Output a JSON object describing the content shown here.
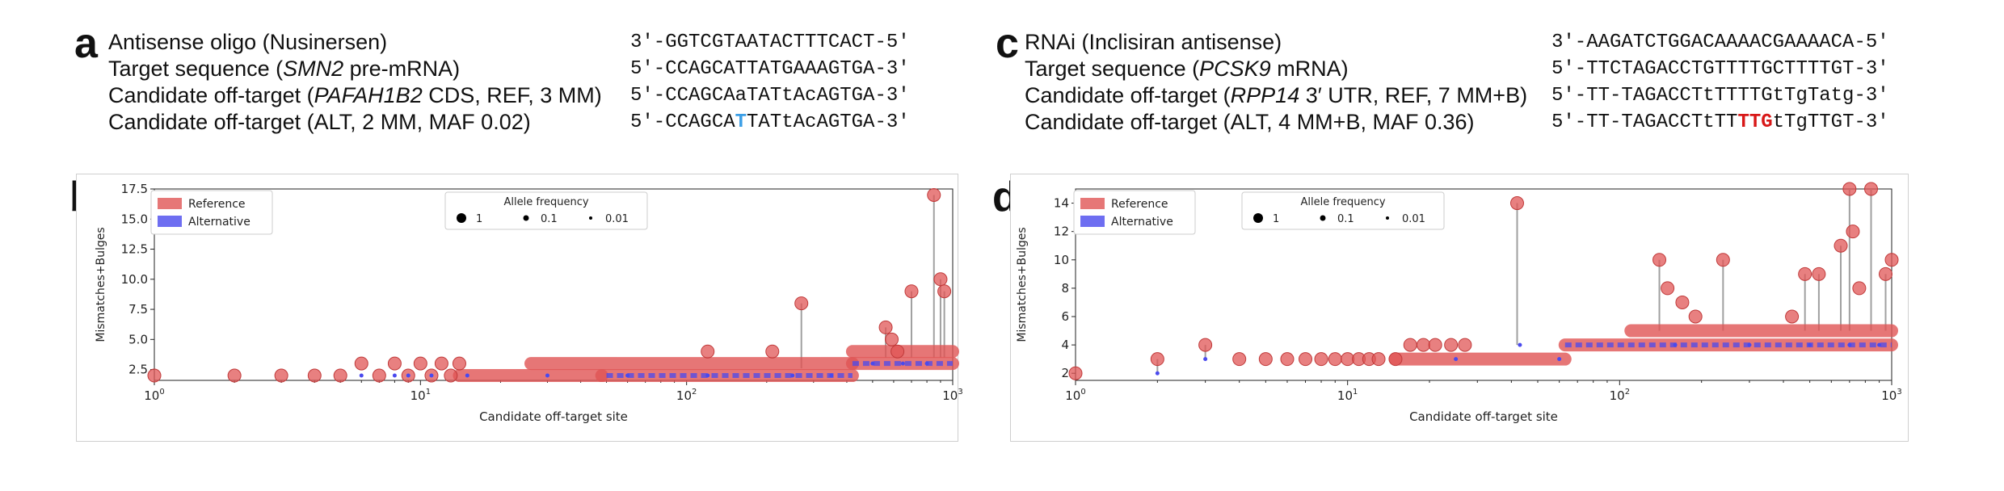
{
  "panels": {
    "a": {
      "letter": "a",
      "rows": [
        {
          "desc": [
            {
              "t": "Antisense oligo (Nusinersen)"
            }
          ],
          "seq": [
            {
              "t": "3′-GGTCGTAATACTTTCACT-5′"
            }
          ]
        },
        {
          "desc": [
            {
              "t": "Target sequence ("
            },
            {
              "t": "SMN2",
              "i": true
            },
            {
              "t": " pre-mRNA)"
            }
          ],
          "seq": [
            {
              "t": "5′-CCAGCATTATGAAAGTGA-3′"
            }
          ]
        },
        {
          "desc": [
            {
              "t": "Candidate off-target ("
            },
            {
              "t": "PAFAH1B2",
              "i": true
            },
            {
              "t": " CDS, REF, 3 MM)"
            }
          ],
          "seq": [
            {
              "t": "5′-CCAGCAaTATtAcAGTGA-3′"
            }
          ]
        },
        {
          "desc": [
            {
              "t": "Candidate off-target (ALT, 2 MM, MAF 0.02)"
            }
          ],
          "seq": [
            {
              "t": "5′-CCAGCA"
            },
            {
              "t": "T",
              "c": "var-blue"
            },
            {
              "t": "TATtAcAGTGA-3′"
            }
          ]
        }
      ]
    },
    "c": {
      "letter": "c",
      "rows": [
        {
          "desc": [
            {
              "t": "RNAi (Inclisiran antisense)"
            }
          ],
          "seq": [
            {
              "t": "3′-AAGATCTGGACAAAACGAAAACA-5′"
            }
          ]
        },
        {
          "desc": [
            {
              "t": "Target sequence ("
            },
            {
              "t": "PCSK9",
              "i": true
            },
            {
              "t": " mRNA)"
            }
          ],
          "seq": [
            {
              "t": "5′-TTCTAGACCTGTTTTGCTTTTGT-3′"
            }
          ]
        },
        {
          "desc": [
            {
              "t": "Candidate off-target ("
            },
            {
              "t": "RPP14",
              "i": true
            },
            {
              "t": " 3′ UTR, REF, 7 MM+B)"
            }
          ],
          "seq": [
            {
              "t": "5′-TT-TAGACCTtTTTTGtTgTatg-3′"
            }
          ]
        },
        {
          "desc": [
            {
              "t": "Candidate off-target (ALT, 4 MM+B, MAF 0.36)"
            }
          ],
          "seq": [
            {
              "t": "5′-TT-TAGACCTtTT"
            },
            {
              "t": "TTG",
              "c": "var-red"
            },
            {
              "t": "tTgTTGT-3′"
            }
          ]
        }
      ]
    },
    "b": {
      "letter": "b"
    },
    "d": {
      "letter": "d"
    }
  },
  "chart_data": [
    {
      "panel": "b",
      "type": "scatter",
      "xlabel": "Candidate off-target site",
      "ylabel": "Mismatches+Bulges",
      "xscale": "log",
      "xlim": [
        1,
        1000
      ],
      "ylim": [
        1.6,
        17.5
      ],
      "xticks": [
        {
          "v": 1,
          "base": "10",
          "exp": "0"
        },
        {
          "v": 10,
          "base": "10",
          "exp": "1"
        },
        {
          "v": 100,
          "base": "10",
          "exp": "2"
        },
        {
          "v": 1000,
          "base": "10",
          "exp": "3"
        }
      ],
      "yticks": [
        {
          "v": 2.5,
          "label": "2.5"
        },
        {
          "v": 5.0,
          "label": "5.0"
        },
        {
          "v": 7.5,
          "label": "7.5"
        },
        {
          "v": 10.0,
          "label": "10.0"
        },
        {
          "v": 12.5,
          "label": "12.5"
        },
        {
          "v": 15.0,
          "label": "15.0"
        },
        {
          "v": 17.5,
          "label": "17.5"
        }
      ],
      "legend_series": {
        "reference": "Reference",
        "alternative": "Alternative"
      },
      "legend_size_title": "Allele frequency",
      "legend_sizes": [
        {
          "label": "1",
          "af": 1
        },
        {
          "label": "0.1",
          "af": 0.1
        },
        {
          "label": "0.01",
          "af": 0.01
        }
      ],
      "colors": {
        "reference": "#e05555",
        "alternative": "#4a4aee"
      },
      "reference_points": [
        [
          1,
          2
        ],
        [
          2,
          2
        ],
        [
          3,
          2
        ],
        [
          4,
          2
        ],
        [
          5,
          2
        ],
        [
          6,
          3
        ],
        [
          7,
          2
        ],
        [
          8,
          3
        ],
        [
          9,
          2
        ],
        [
          10,
          3
        ],
        [
          11,
          2
        ],
        [
          12,
          3
        ],
        [
          13,
          2
        ],
        [
          14,
          3
        ],
        [
          270,
          8
        ],
        [
          700,
          9
        ],
        [
          850,
          17
        ],
        [
          900,
          10
        ],
        [
          930,
          9
        ],
        [
          560,
          6
        ],
        [
          590,
          5
        ],
        [
          620,
          4
        ],
        [
          210,
          4
        ],
        [
          120,
          4
        ]
      ],
      "reference_segments": [
        [
          14,
          48,
          2,
          2
        ],
        [
          48,
          420,
          2,
          2
        ],
        [
          26,
          420,
          3,
          3
        ],
        [
          420,
          1000,
          3,
          3
        ],
        [
          420,
          1000,
          4,
          4
        ]
      ],
      "alternative_points": [
        [
          6,
          2
        ],
        [
          8,
          2
        ],
        [
          9,
          2
        ],
        [
          11,
          2
        ],
        [
          15,
          2
        ],
        [
          30,
          2
        ],
        [
          60,
          2
        ],
        [
          120,
          2
        ],
        [
          250,
          2
        ],
        [
          350,
          2
        ],
        [
          500,
          3
        ],
        [
          650,
          3
        ],
        [
          800,
          3
        ]
      ],
      "alternative_segments": [
        [
          50,
          420,
          2,
          2
        ],
        [
          420,
          1000,
          3,
          3
        ]
      ],
      "stems": [
        [
          270,
          2.6,
          8
        ],
        [
          700,
          3.5,
          9
        ],
        [
          850,
          3.5,
          17
        ],
        [
          900,
          3.5,
          10
        ],
        [
          930,
          3.5,
          9
        ],
        [
          560,
          3.5,
          6
        ]
      ]
    },
    {
      "panel": "d",
      "type": "scatter",
      "xlabel": "Candidate off-target site",
      "ylabel": "Mismatches+Bulges",
      "xscale": "log",
      "xlim": [
        1,
        1000
      ],
      "ylim": [
        1.5,
        15
      ],
      "xticks": [
        {
          "v": 1,
          "base": "10",
          "exp": "0"
        },
        {
          "v": 10,
          "base": "10",
          "exp": "1"
        },
        {
          "v": 100,
          "base": "10",
          "exp": "2"
        },
        {
          "v": 1000,
          "base": "10",
          "exp": "3"
        }
      ],
      "yticks": [
        {
          "v": 2,
          "label": "2"
        },
        {
          "v": 4,
          "label": "4"
        },
        {
          "v": 6,
          "label": "6"
        },
        {
          "v": 8,
          "label": "8"
        },
        {
          "v": 10,
          "label": "10"
        },
        {
          "v": 12,
          "label": "12"
        },
        {
          "v": 14,
          "label": "14"
        }
      ],
      "legend_series": {
        "reference": "Reference",
        "alternative": "Alternative"
      },
      "legend_size_title": "Allele frequency",
      "legend_sizes": [
        {
          "label": "1",
          "af": 1
        },
        {
          "label": "0.1",
          "af": 0.1
        },
        {
          "label": "0.01",
          "af": 0.01
        }
      ],
      "colors": {
        "reference": "#e05555",
        "alternative": "#4a4aee"
      },
      "reference_points": [
        [
          1,
          2
        ],
        [
          2,
          3
        ],
        [
          3,
          4
        ],
        [
          4,
          3
        ],
        [
          5,
          3
        ],
        [
          6,
          3
        ],
        [
          7,
          3
        ],
        [
          8,
          3
        ],
        [
          9,
          3
        ],
        [
          10,
          3
        ],
        [
          11,
          3
        ],
        [
          12,
          3
        ],
        [
          13,
          3
        ],
        [
          15,
          3
        ],
        [
          17,
          4
        ],
        [
          19,
          4
        ],
        [
          21,
          4
        ],
        [
          24,
          4
        ],
        [
          27,
          4
        ],
        [
          42,
          14
        ],
        [
          140,
          10
        ],
        [
          150,
          8
        ],
        [
          170,
          7
        ],
        [
          190,
          6
        ],
        [
          240,
          10
        ],
        [
          430,
          6
        ],
        [
          480,
          9
        ],
        [
          540,
          9
        ],
        [
          650,
          11
        ],
        [
          700,
          15
        ],
        [
          720,
          12
        ],
        [
          760,
          8
        ],
        [
          840,
          15
        ],
        [
          950,
          9
        ],
        [
          1000,
          10
        ]
      ],
      "reference_segments": [
        [
          15,
          63,
          3,
          3
        ],
        [
          63,
          1000,
          4,
          4
        ],
        [
          110,
          1000,
          5,
          5
        ]
      ],
      "alternative_points": [
        [
          2,
          2
        ],
        [
          3,
          3
        ],
        [
          25,
          3
        ],
        [
          43,
          4
        ],
        [
          60,
          3
        ],
        [
          160,
          4
        ],
        [
          300,
          4
        ],
        [
          500,
          4
        ],
        [
          700,
          4
        ],
        [
          900,
          4
        ]
      ],
      "alternative_segments": [
        [
          63,
          1000,
          4,
          4
        ]
      ],
      "stems": [
        [
          2,
          2,
          3
        ],
        [
          3,
          3,
          4
        ],
        [
          42,
          4,
          14
        ],
        [
          140,
          5,
          10
        ],
        [
          240,
          5,
          10
        ],
        [
          480,
          5,
          9
        ],
        [
          540,
          5,
          9
        ],
        [
          650,
          5,
          11
        ],
        [
          700,
          5,
          15
        ],
        [
          840,
          5,
          15
        ],
        [
          950,
          5,
          9
        ]
      ]
    }
  ]
}
